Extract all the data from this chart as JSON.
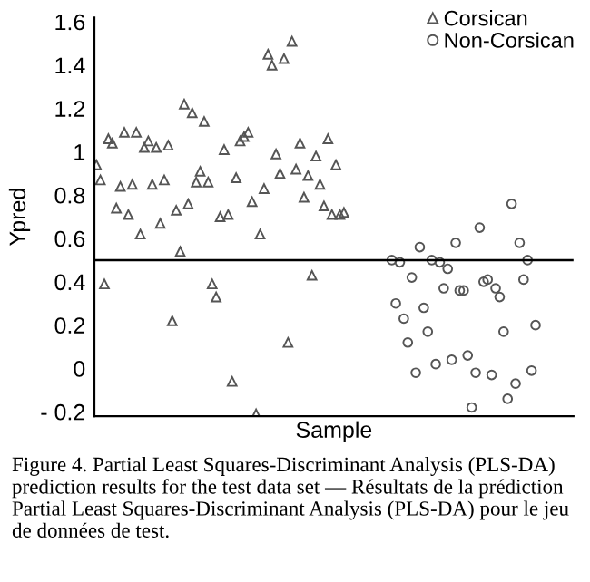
{
  "chart_data": {
    "type": "scatter",
    "xlabel": "Sample",
    "ylabel": "Ypred",
    "categories": [
      null,
      null,
      null,
      null,
      null,
      null,
      null,
      null,
      null,
      null,
      null,
      null,
      null,
      null,
      null,
      null,
      null,
      null,
      null,
      null,
      null,
      null,
      null,
      null,
      null,
      null,
      null,
      null,
      null,
      null,
      null,
      null,
      null,
      null,
      null,
      null,
      null,
      null,
      null,
      null,
      null,
      null,
      null,
      null,
      null,
      null,
      null,
      null,
      null,
      null,
      null,
      null,
      null,
      null,
      null,
      null,
      null,
      null,
      null,
      null,
      null,
      null,
      null,
      null,
      null,
      null,
      null,
      null,
      null,
      null,
      null,
      null,
      null,
      null,
      null,
      null,
      null,
      null,
      null,
      null,
      null,
      null,
      null,
      null,
      null,
      null,
      null,
      null,
      null,
      null,
      null,
      null,
      null,
      null,
      null,
      null,
      null,
      null,
      null,
      null,
      null,
      null,
      null,
      null,
      null,
      null,
      null,
      null,
      null,
      null,
      null,
      null,
      null,
      null,
      null,
      null,
      null,
      null,
      null,
      null
    ],
    "series": [
      {
        "name": "Corsican",
        "color": "#555555",
        "marker": "triangle",
        "values": [
          0.94,
          0.87,
          0.39,
          1.06,
          1.04,
          0.74,
          0.84,
          1.09,
          0.71,
          0.85,
          1.09,
          0.62,
          1.02,
          1.05,
          0.85,
          1.02,
          0.67,
          0.87,
          1.03,
          0.22,
          0.73,
          0.54,
          1.22,
          0.76,
          1.18,
          0.86,
          0.91,
          1.14,
          0.86,
          0.39,
          0.33,
          0.7,
          1.01,
          0.71,
          -0.06,
          0.88,
          1.05,
          1.07,
          1.09,
          0.77,
          -0.21,
          0.62,
          0.83,
          1.45,
          1.4,
          0.99,
          0.9,
          1.43,
          0.12,
          1.51,
          0.92,
          1.04,
          0.79,
          0.89,
          0.43,
          0.98,
          0.85,
          0.75,
          1.06,
          0.71,
          0.94,
          0.71,
          0.72,
          null,
          null,
          null,
          null,
          null,
          null,
          null,
          null,
          null,
          null,
          null,
          null,
          null,
          null,
          null,
          null,
          null,
          null,
          null,
          null,
          null,
          null,
          null,
          null,
          null,
          null,
          null,
          null,
          null,
          null,
          null,
          null,
          null,
          null,
          null,
          null,
          null,
          null,
          null,
          null,
          null,
          null,
          null,
          null,
          null,
          null,
          null,
          null,
          null,
          null,
          null,
          null,
          null,
          null,
          null,
          null,
          null
        ]
      },
      {
        "name": "Non-Corsican",
        "color": "#555555",
        "marker": "circle",
        "values": [
          null,
          null,
          null,
          null,
          null,
          null,
          null,
          null,
          null,
          null,
          null,
          null,
          null,
          null,
          null,
          null,
          null,
          null,
          null,
          null,
          null,
          null,
          null,
          null,
          null,
          null,
          null,
          null,
          null,
          null,
          null,
          null,
          null,
          null,
          null,
          null,
          null,
          null,
          null,
          null,
          null,
          null,
          null,
          null,
          null,
          null,
          null,
          null,
          null,
          null,
          null,
          null,
          null,
          null,
          null,
          null,
          null,
          null,
          null,
          null,
          null,
          null,
          null,
          null,
          null,
          null,
          null,
          null,
          null,
          null,
          null,
          null,
          null,
          null,
          0.5,
          0.3,
          0.49,
          0.23,
          0.12,
          0.42,
          -0.02,
          0.56,
          0.28,
          0.17,
          0.5,
          0.02,
          0.49,
          0.37,
          0.46,
          0.04,
          0.58,
          0.36,
          0.36,
          0.06,
          -0.18,
          -0.02,
          0.65,
          0.4,
          0.41,
          -0.03,
          0.37,
          0.33,
          0.17,
          -0.14,
          0.76,
          -0.07,
          0.58,
          0.41,
          0.5,
          -0.01,
          0.2,
          null,
          null,
          null,
          null,
          null,
          null,
          null,
          null,
          null
        ]
      }
    ],
    "ylim": [
      -0.22,
      1.62
    ],
    "yticks": [
      {
        "value": -0.2,
        "label": "- 0.2"
      },
      0,
      0.2,
      0.4,
      0.6,
      0.8,
      1,
      1.2,
      1.4,
      1.6
    ],
    "ref_lines": [
      {
        "axis": "y",
        "value": 0.5,
        "color": "#000000"
      }
    ],
    "legend": "top right",
    "grid": false,
    "tick_labels": "y",
    "annotations": [
      "Figure 4. Partial Least Squares-Discriminant Analysis (PLS-DA) prediction results for the test data set — Résultats de la prédiction Partial Least Squares-Discriminant Analysis (PLS-DA) pour le jeu de données de test."
    ]
  }
}
